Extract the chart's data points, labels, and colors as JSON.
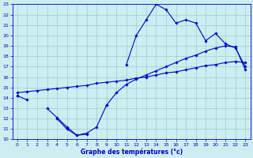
{
  "xlabel": "Graphe des températures (°c)",
  "hours": [
    0,
    1,
    2,
    3,
    4,
    5,
    6,
    7,
    8,
    9,
    10,
    11,
    12,
    13,
    14,
    15,
    16,
    17,
    18,
    19,
    20,
    21,
    22,
    23
  ],
  "curve1": [
    14.2,
    13.8,
    null,
    null,
    12.0,
    11.0,
    10.4,
    10.5,
    null,
    13.3,
    null,
    17.2,
    20.0,
    21.5,
    23.0,
    22.5,
    21.2,
    21.5,
    21.2,
    19.5,
    20.2,
    19.2,
    18.8,
    17.0
  ],
  "curve2": [
    14.2,
    null,
    null,
    13.0,
    12.1,
    11.2,
    10.4,
    10.6,
    11.2,
    13.3,
    14.5,
    15.3,
    15.8,
    16.2,
    16.6,
    17.0,
    17.4,
    17.8,
    18.1,
    18.5,
    18.8,
    19.0,
    18.9,
    16.7
  ],
  "curve3": [
    14.5,
    14.6,
    14.7,
    14.8,
    14.9,
    15.0,
    15.1,
    15.2,
    15.4,
    15.5,
    15.6,
    15.7,
    15.9,
    16.0,
    16.2,
    16.4,
    16.5,
    16.7,
    16.9,
    17.1,
    17.2,
    17.4,
    17.5,
    17.4
  ],
  "line_color": "#0000cc",
  "bg_color": "#cceef0",
  "grid_color": "#99cccc",
  "ylim": [
    10,
    23
  ],
  "xlim": [
    0,
    23
  ],
  "yticks": [
    10,
    11,
    12,
    13,
    14,
    15,
    16,
    17,
    18,
    19,
    20,
    21,
    22,
    23
  ],
  "xticks": [
    0,
    1,
    2,
    3,
    4,
    5,
    6,
    7,
    8,
    9,
    10,
    11,
    12,
    13,
    14,
    15,
    16,
    17,
    18,
    19,
    20,
    21,
    22,
    23
  ]
}
